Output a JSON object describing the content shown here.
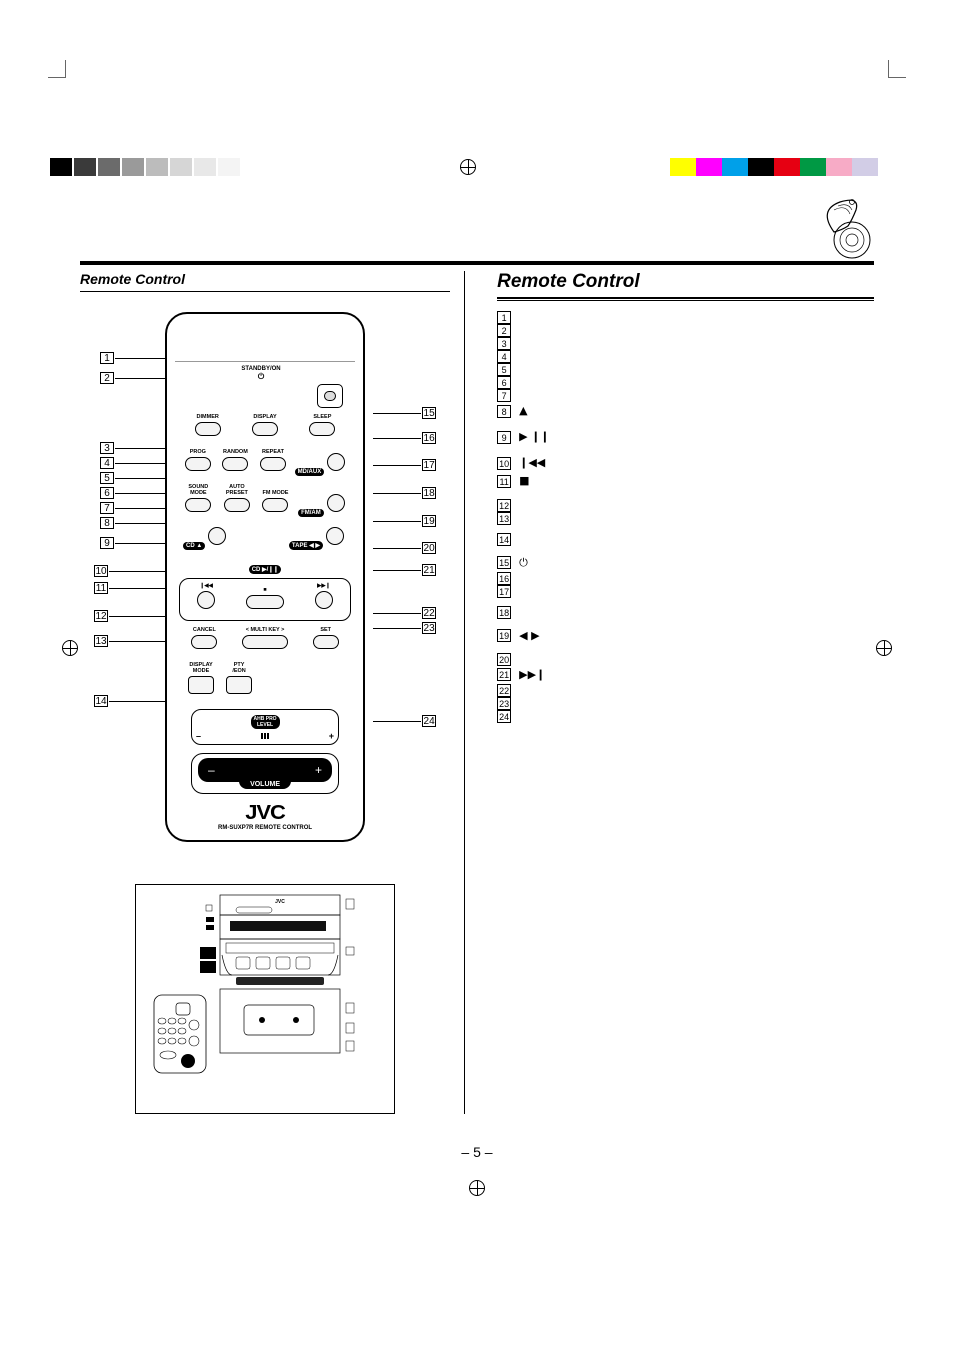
{
  "print_marks": {
    "gray_shades": [
      "#000000",
      "#3a3a3a",
      "#6b6b6b",
      "#9a9a9a",
      "#bcbcbc",
      "#d6d6d6",
      "#e8e8e8",
      "#f4f4f4",
      "#ffffff"
    ],
    "colors": [
      "#ffff00",
      "#ff00ff",
      "#00a0e9",
      "#000000",
      "#e60012",
      "#009944",
      "#f7abc6",
      "#d2cde6",
      "#ffffff"
    ]
  },
  "page_number": "– 5 –",
  "left_box_title": "Remote Control",
  "right_title": "Remote Control",
  "remote": {
    "standby_label": "STANDBY/ON",
    "row1": {
      "dimmer": "DIMMER",
      "display": "DISPLAY",
      "sleep": "SLEEP"
    },
    "row2": {
      "prog": "PROG",
      "random": "RANDOM",
      "repeat": "REPEAT",
      "mdaux": "MD/AUX"
    },
    "row3": {
      "sound": "SOUND\nMODE",
      "auto": "AUTO\nPRESET",
      "fmmode": "FM MODE",
      "fmam": "FM/AM"
    },
    "row4": {
      "cd_eject": "CD ▲",
      "tape": "TAPE ◀ ▶"
    },
    "row5": {
      "cdplay": "CD ▶/❙❙"
    },
    "row6": {
      "prev": "❙◀◀",
      "stop": "■",
      "next": "▶▶❙"
    },
    "row7": {
      "cancel": "CANCEL",
      "multikey": "< MULTI KEY >",
      "set": "SET"
    },
    "row8": {
      "dispmode": "DISPLAY\nMODE",
      "pty": "PTY\n/EON"
    },
    "level": {
      "title": "AHB PRO\nLEVEL",
      "minus": "–",
      "plus": "+"
    },
    "volume": {
      "minus": "–",
      "plus": "+",
      "label": "VOLUME"
    },
    "brand": {
      "logo": "JVC",
      "sub": "RM-SUXP7R REMOTE CONTROL"
    }
  },
  "callouts_left": [
    "1",
    "2",
    "3",
    "4",
    "5",
    "6",
    "7",
    "8",
    "9",
    "10",
    "11",
    "12",
    "13",
    "14"
  ],
  "callouts_right": [
    "15",
    "16",
    "17",
    "18",
    "19",
    "20",
    "21",
    "22",
    "23",
    "24"
  ],
  "ref_list": [
    {
      "n": "1",
      "sym": ""
    },
    {
      "n": "2",
      "sym": ""
    },
    {
      "n": "3",
      "sym": ""
    },
    {
      "n": "4",
      "sym": ""
    },
    {
      "n": "5",
      "sym": ""
    },
    {
      "n": "6",
      "sym": ""
    },
    {
      "n": "7",
      "sym": ""
    },
    {
      "n": "8",
      "sym": "▲"
    },
    {
      "n": "9",
      "sym": "▶ ❙❙"
    },
    {
      "n": "10",
      "sym": "❙◀◀"
    },
    {
      "n": "11",
      "sym": "■"
    },
    {
      "n": "12",
      "sym": ""
    },
    {
      "n": "13",
      "sym": ""
    },
    {
      "n": "14",
      "sym": ""
    },
    {
      "n": "15",
      "sym": "⏻"
    },
    {
      "n": "16",
      "sym": ""
    },
    {
      "n": "17",
      "sym": ""
    },
    {
      "n": "18",
      "sym": ""
    },
    {
      "n": "19",
      "sym": "◀ ▶"
    },
    {
      "n": "20",
      "sym": ""
    },
    {
      "n": "21",
      "sym": "▶▶❙"
    },
    {
      "n": "22",
      "sym": ""
    },
    {
      "n": "23",
      "sym": ""
    },
    {
      "n": "24",
      "sym": ""
    }
  ]
}
